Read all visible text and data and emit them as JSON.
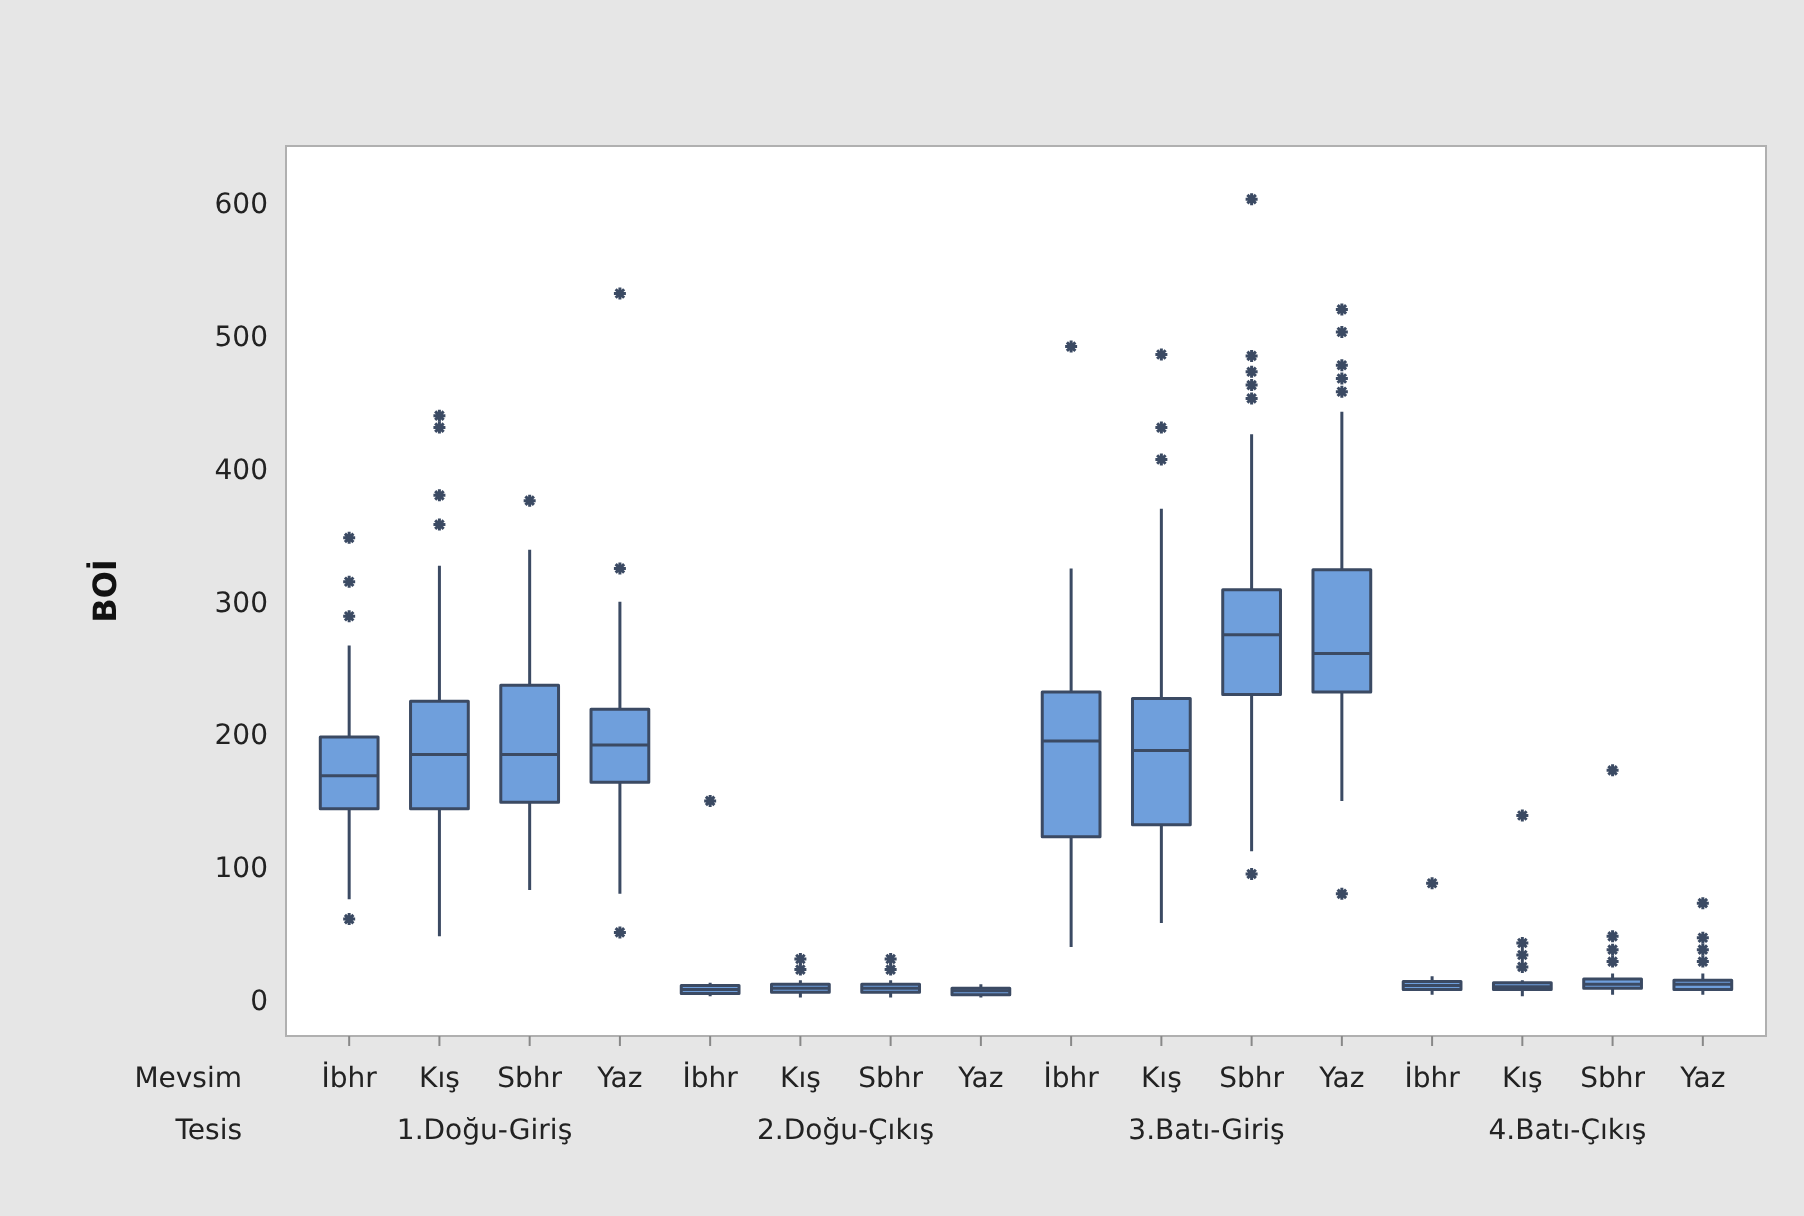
{
  "chart_data": {
    "type": "box",
    "ylabel": "BOİ",
    "categories": [
      "İbhr",
      "Kış",
      "Sbhr",
      "Yaz",
      "İbhr",
      "Kış",
      "Sbhr",
      "Yaz",
      "İbhr",
      "Kış",
      "Sbhr",
      "Yaz",
      "İbhr",
      "Kış",
      "Sbhr",
      "Yaz"
    ],
    "annotations": [
      "Mevsim",
      "Tesis",
      "1.Doğu-Giriş",
      "2.Doğu-Çıkış",
      "3.Batı-Giriş",
      "4.Batı-Çıkış"
    ],
    "color": "#6f9fdc",
    "marker": "star",
    "ylim": [
      -25,
      645
    ],
    "yticks": [
      0,
      100,
      200,
      300,
      400,
      500,
      600
    ],
    "grid": false,
    "boxes": [
      {
        "low": 78,
        "q1": 146,
        "median": 171,
        "q3": 200,
        "high": 269,
        "outliers": [
          350,
          317,
          291,
          63
        ]
      },
      {
        "low": 50,
        "q1": 146,
        "median": 187,
        "q3": 227,
        "high": 329,
        "outliers": [
          442,
          433,
          382,
          360
        ]
      },
      {
        "low": 85,
        "q1": 151,
        "median": 187,
        "q3": 239,
        "high": 341,
        "outliers": [
          378
        ]
      },
      {
        "low": 82,
        "q1": 166,
        "median": 194,
        "q3": 221,
        "high": 302,
        "outliers": [
          534,
          327,
          53
        ]
      },
      {
        "low": 5,
        "q1": 7,
        "median": 10,
        "q3": 13,
        "high": 15,
        "outliers": [
          152
        ]
      },
      {
        "low": 4,
        "q1": 8,
        "median": 11,
        "q3": 14,
        "high": 17,
        "outliers": [
          25,
          33
        ]
      },
      {
        "low": 4,
        "q1": 8,
        "median": 11,
        "q3": 14,
        "high": 17,
        "outliers": [
          25,
          33
        ]
      },
      {
        "low": 4,
        "q1": 6,
        "median": 9,
        "q3": 11,
        "high": 14
      },
      {
        "low": 42,
        "q1": 125,
        "median": 197,
        "q3": 234,
        "high": 327,
        "outliers": [
          494
        ]
      },
      {
        "low": 60,
        "q1": 134,
        "median": 190,
        "q3": 229,
        "high": 372,
        "outliers": [
          488,
          433,
          409
        ]
      },
      {
        "low": 114,
        "q1": 232,
        "median": 277,
        "q3": 311,
        "high": 428,
        "outliers": [
          605,
          487,
          475,
          465,
          455,
          97
        ]
      },
      {
        "low": 152,
        "q1": 234,
        "median": 263,
        "q3": 326,
        "high": 445,
        "outliers": [
          522,
          505,
          480,
          470,
          460,
          82
        ]
      },
      {
        "low": 6,
        "q1": 10,
        "median": 13,
        "q3": 16,
        "high": 20,
        "outliers": [
          90
        ]
      },
      {
        "low": 5,
        "q1": 10,
        "median": 12,
        "q3": 15,
        "high": 17,
        "outliers": [
          141,
          45,
          36,
          27
        ]
      },
      {
        "low": 6,
        "q1": 11,
        "median": 14,
        "q3": 18,
        "high": 22,
        "outliers": [
          175,
          50,
          40,
          31
        ]
      },
      {
        "low": 6,
        "q1": 10,
        "median": 14,
        "q3": 17,
        "high": 22,
        "outliers": [
          75,
          49,
          40,
          31
        ]
      }
    ]
  }
}
